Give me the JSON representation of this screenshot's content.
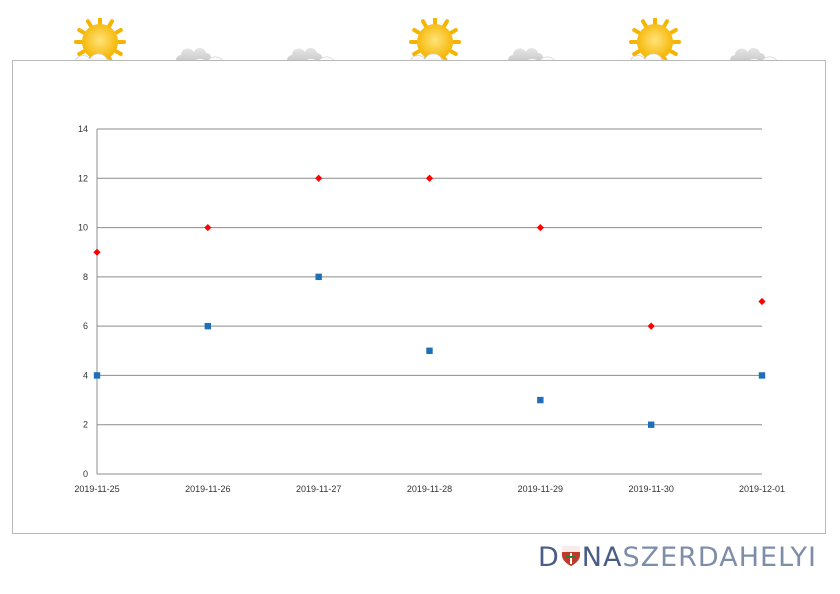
{
  "weather": {
    "icons": [
      "partly-sunny-icon",
      "cloudy-icon",
      "cloudy-icon",
      "partly-sunny-icon",
      "cloudy-icon",
      "partly-sunny-icon",
      "cloudy-icon"
    ]
  },
  "brand": {
    "part1": "D",
    "part2": "NA",
    "part3": "SZERDAHELYI",
    "colors": {
      "dark": "#4a5d86",
      "light": "#7e8ea8",
      "emblem": "#c0392b"
    }
  },
  "chart_data": {
    "type": "scatter",
    "title": "",
    "xlabel": "",
    "ylabel": "",
    "categories": [
      "2019-11-25",
      "2019-11-26",
      "2019-11-27",
      "2019-11-28",
      "2019-11-29",
      "2019-11-30",
      "2019-12-01"
    ],
    "ylim": [
      0,
      14
    ],
    "yticks": [
      0,
      2,
      4,
      6,
      8,
      10,
      12,
      14
    ],
    "grid": true,
    "series": [
      {
        "values": [
          9,
          10,
          12,
          12,
          10,
          6,
          7
        ],
        "marker": "diamond",
        "color": "#ff0000"
      },
      {
        "values": [
          4,
          6,
          8,
          5,
          3,
          2,
          4
        ],
        "marker": "square",
        "color": "#1f6fb8"
      }
    ]
  }
}
